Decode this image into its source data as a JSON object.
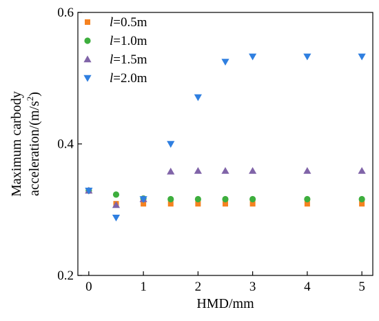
{
  "chart_data": {
    "type": "scatter",
    "title": "",
    "xlabel": "HMD/mm",
    "ylabel_lines": [
      "Maximum carbody",
      "acceleration/(m/s",
      "2",
      ")"
    ],
    "xlim": [
      -0.2,
      5.2
    ],
    "ylim": [
      0.2,
      0.6
    ],
    "xticks": [
      0,
      1,
      2,
      3,
      4,
      5
    ],
    "yticks": [
      0.2,
      0.4,
      0.6
    ],
    "grid": false,
    "legend_position": "top-left",
    "series": [
      {
        "name": "l=0.5m",
        "name_var": "l",
        "name_rest": "=0.5m",
        "marker": "square",
        "color": "#f58220",
        "x": [
          0,
          0.5,
          1,
          1.5,
          2,
          2.5,
          3,
          4,
          5
        ],
        "y": [
          0.329,
          0.309,
          0.309,
          0.309,
          0.309,
          0.309,
          0.309,
          0.309,
          0.309
        ]
      },
      {
        "name": "l=1.0m",
        "name_var": "l",
        "name_rest": "=1.0m",
        "marker": "circle",
        "color": "#3dae3d",
        "x": [
          0,
          0.5,
          1,
          1.5,
          2,
          2.5,
          3,
          4,
          5
        ],
        "y": [
          0.329,
          0.323,
          0.317,
          0.316,
          0.316,
          0.316,
          0.316,
          0.316,
          0.316
        ]
      },
      {
        "name": "l=1.5m",
        "name_var": "l",
        "name_rest": "=1.5m",
        "marker": "triangle-up",
        "color": "#8064a8",
        "x": [
          0,
          0.5,
          1,
          1.5,
          2,
          2.5,
          3,
          4,
          5
        ],
        "y": [
          0.329,
          0.307,
          0.316,
          0.358,
          0.359,
          0.359,
          0.359,
          0.359,
          0.359
        ]
      },
      {
        "name": "l=2.0m",
        "name_var": "l",
        "name_rest": "=2.0m",
        "marker": "triangle-down",
        "color": "#2f7fe0",
        "x": [
          0,
          0.5,
          1,
          1.5,
          2,
          2.5,
          3,
          4,
          5
        ],
        "y": [
          0.329,
          0.288,
          0.316,
          0.4,
          0.471,
          0.525,
          0.533,
          0.533,
          0.533
        ]
      }
    ]
  }
}
